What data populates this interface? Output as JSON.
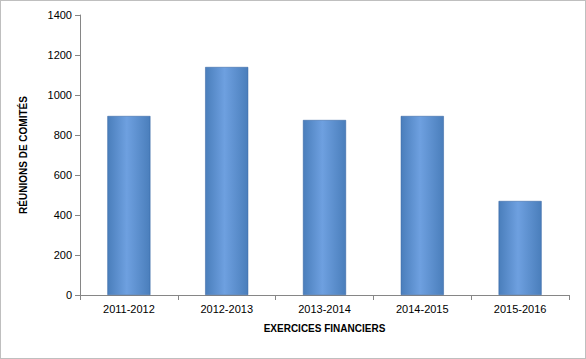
{
  "chart_data": {
    "type": "bar",
    "x_label": "EXERCICES FINANCIERS",
    "y_label": "RÉUNIONS DE COMITÉS",
    "categories": [
      "2011-2012",
      "2012-2013",
      "2013-2014",
      "2014-2015",
      "2015-2016"
    ],
    "values": [
      895,
      1140,
      875,
      895,
      470
    ],
    "color": "#4a7ebb",
    "ylim": [
      0,
      1400
    ],
    "yticks": [
      0,
      200,
      400,
      600,
      800,
      1000,
      1200,
      1400
    ],
    "grid": false
  }
}
